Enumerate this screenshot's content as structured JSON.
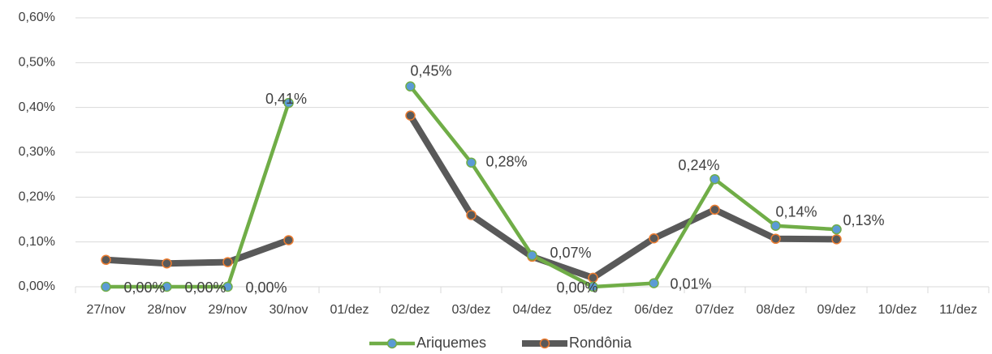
{
  "chart_data": {
    "type": "line",
    "categories": [
      "27/nov",
      "28/nov",
      "29/nov",
      "30/nov",
      "01/dez",
      "02/dez",
      "03/dez",
      "04/dez",
      "05/dez",
      "06/dez",
      "07/dez",
      "08/dez",
      "09/dez",
      "10/dez",
      "11/dez"
    ],
    "series": [
      {
        "name": "Rondônia",
        "color": "#595959",
        "marker_color": "#ed7d31",
        "values": [
          0.06,
          0.052,
          0.055,
          0.104,
          null,
          0.382,
          0.16,
          0.067,
          0.02,
          0.108,
          0.172,
          0.107,
          0.106,
          null,
          null
        ]
      },
      {
        "name": "Ariquemes",
        "color": "#70ad47",
        "marker_color": "#5b9bd5",
        "values": [
          0,
          0,
          0,
          0.41,
          null,
          0.447,
          0.277,
          0.07,
          0,
          0.008,
          0.24,
          0.136,
          0.128,
          null,
          null
        ],
        "value_labels": [
          "0,00%",
          "0,00%",
          "0,00%",
          "0,41%",
          null,
          "0,45%",
          "0,28%",
          "0,07%",
          "0,00%",
          "0,01%",
          "0,24%",
          "0,14%",
          "0,13%",
          null,
          null
        ]
      }
    ],
    "ylim": [
      0,
      0.6
    ],
    "yticks": [
      {
        "value": 0,
        "label": "0,00%"
      },
      {
        "value": 0.1,
        "label": "0,10%"
      },
      {
        "value": 0.2,
        "label": "0,20%"
      },
      {
        "value": 0.3,
        "label": "0,30%"
      },
      {
        "value": 0.4,
        "label": "0,40%"
      },
      {
        "value": 0.5,
        "label": "0,50%"
      },
      {
        "value": 0.6,
        "label": "0,60%"
      }
    ],
    "grid": true,
    "legend": "bottom"
  }
}
